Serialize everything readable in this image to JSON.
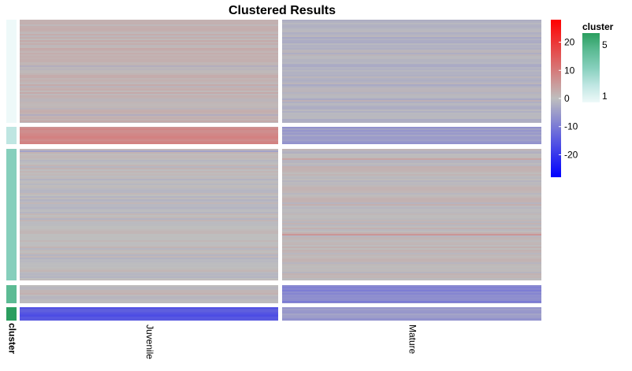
{
  "chart_data": {
    "type": "heatmap",
    "title": "Clustered Results",
    "columns": [
      "Juvenile",
      "Mature"
    ],
    "row_annotation_label": "cluster",
    "clusters": [
      {
        "id": 1,
        "color": "#eef9f9",
        "mean_values": [
          1.5,
          -1.5
        ]
      },
      {
        "id": 2,
        "color": "#bfe6e2",
        "mean_values": [
          8.0,
          -5.0
        ]
      },
      {
        "id": 3,
        "color": "#86cfbc",
        "mean_values": [
          0.0,
          0.5
        ]
      },
      {
        "id": 4,
        "color": "#5cbb94",
        "mean_values": [
          0.5,
          -8.0
        ]
      },
      {
        "id": 5,
        "color": "#2b9e5f",
        "mean_values": [
          -15.0,
          -5.0
        ]
      }
    ],
    "color_scale": {
      "min": -28,
      "max": 28,
      "low_color": "#0000ff",
      "mid_color": "#bebebe",
      "high_color": "#ff0000",
      "ticks": [
        20,
        10,
        0,
        -10,
        -20
      ]
    },
    "cluster_legend": {
      "title": "cluster",
      "labels": [
        "5",
        "1"
      ]
    }
  }
}
